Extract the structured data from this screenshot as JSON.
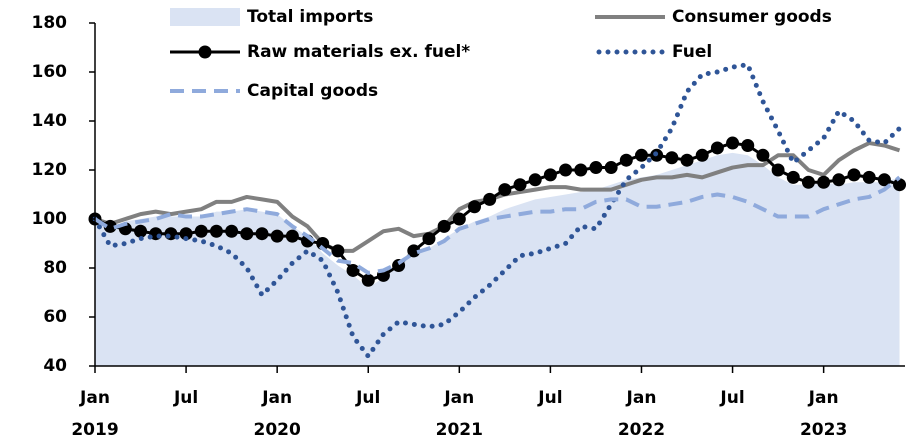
{
  "chart_data": {
    "type": "line",
    "categories": [
      "Jan 2019",
      null,
      null,
      null,
      null,
      null,
      "Jul",
      null,
      null,
      null,
      null,
      null,
      "Jan 2020",
      null,
      null,
      null,
      null,
      null,
      "Jul",
      null,
      null,
      null,
      null,
      null,
      "Jan 2021",
      null,
      null,
      null,
      null,
      null,
      "Jul",
      null,
      null,
      null,
      null,
      null,
      "Jan 2022",
      null,
      null,
      null,
      null,
      null,
      "Jul",
      null,
      null,
      null,
      null,
      null,
      "Jan 2023",
      null,
      null,
      null,
      null,
      null
    ],
    "ylim": [
      40,
      180
    ],
    "yticks": [
      40,
      60,
      80,
      100,
      120,
      140,
      160,
      180
    ],
    "series": [
      {
        "name": "Total imports",
        "color": "#dae3f3",
        "style": "area",
        "values": [
          100,
          96,
          99,
          100,
          101,
          101,
          101,
          101,
          103,
          103,
          104,
          103,
          102,
          97,
          93,
          86,
          81,
          77,
          72,
          76,
          81,
          85,
          88,
          92,
          96,
          99,
          101,
          104,
          106,
          108,
          109,
          110,
          111,
          112,
          114,
          116,
          117,
          118,
          120,
          122,
          124,
          126,
          127,
          126,
          122,
          117,
          114,
          114,
          115,
          114,
          115,
          115,
          115,
          117
        ]
      },
      {
        "name": "Consumer goods",
        "color": "#808080",
        "style": "solid",
        "values": [
          100,
          98,
          100,
          102,
          103,
          102,
          103,
          104,
          107,
          107,
          109,
          108,
          107,
          101,
          97,
          90,
          87,
          87,
          91,
          95,
          96,
          93,
          94,
          97,
          104,
          107,
          108,
          110,
          111,
          112,
          113,
          113,
          112,
          112,
          112,
          114,
          116,
          117,
          117,
          118,
          117,
          119,
          121,
          122,
          122,
          126,
          126,
          120,
          118,
          124,
          128,
          131,
          130,
          128
        ]
      },
      {
        "name": "Raw materials ex. fuel*",
        "color": "#000000",
        "style": "markers",
        "values": [
          100,
          97,
          96,
          95,
          94,
          94,
          94,
          95,
          95,
          95,
          94,
          94,
          93,
          93,
          91,
          90,
          87,
          79,
          75,
          77,
          81,
          87,
          92,
          97,
          100,
          105,
          108,
          112,
          114,
          116,
          118,
          120,
          120,
          121,
          121,
          124,
          126,
          126,
          125,
          124,
          126,
          129,
          131,
          130,
          126,
          120,
          117,
          115,
          115,
          116,
          118,
          117,
          116,
          114
        ]
      },
      {
        "name": "Fuel",
        "color": "#2f5597",
        "style": "dotted",
        "values": [
          100,
          89,
          90,
          92,
          93,
          93,
          92,
          91,
          89,
          86,
          80,
          69,
          75,
          82,
          87,
          83,
          70,
          52,
          44,
          53,
          58,
          57,
          56,
          57,
          62,
          68,
          73,
          79,
          85,
          86,
          88,
          90,
          97,
          96,
          106,
          116,
          121,
          127,
          137,
          152,
          159,
          160,
          162,
          163,
          148,
          136,
          123,
          128,
          133,
          144,
          140,
          132,
          131,
          137
        ]
      },
      {
        "name": "Capital goods",
        "color": "#8faadc",
        "style": "dashed",
        "values": [
          100,
          96,
          98,
          99,
          100,
          102,
          101,
          101,
          102,
          103,
          104,
          103,
          102,
          97,
          93,
          88,
          83,
          82,
          78,
          79,
          82,
          86,
          88,
          91,
          96,
          98,
          100,
          101,
          102,
          103,
          103,
          104,
          104,
          107,
          108,
          108,
          105,
          105,
          106,
          107,
          109,
          110,
          109,
          107,
          104,
          101,
          101,
          101,
          104,
          106,
          108,
          109,
          112,
          117
        ]
      }
    ]
  }
}
